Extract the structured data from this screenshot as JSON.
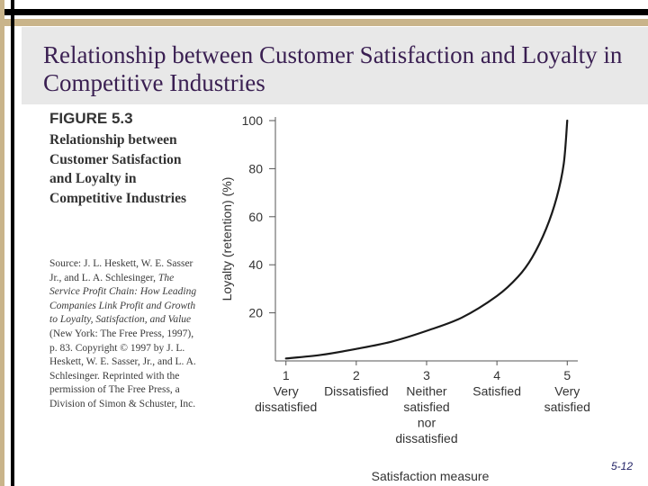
{
  "slide": {
    "title": "Relationship between Customer Satisfaction and Loyalty in Competitive Industries",
    "number": "5-12"
  },
  "figure": {
    "label": "FIGURE 5.3",
    "caption": "Relationship between Customer Satisfaction and Loyalty in Competitive Industries",
    "source_parts": [
      {
        "text": "Source: J. L. Heskett, W. E. Sasser Jr., and L. A. Schlesinger, ",
        "italic": false
      },
      {
        "text": "The Service Profit Chain: How Leading Companies Link Profit and Growth to Loyalty, Satisfaction, and Value",
        "italic": true
      },
      {
        "text": " (New York: The Free Press, 1997), p. 83. Copyright © 1997 by J. L. Heskett, W. E. Sasser, Jr., and L. A. Schlesinger. Reprinted with the permission of The Free Press, a Division of Simon & Schuster, Inc.",
        "italic": false
      }
    ]
  },
  "colors": {
    "title": "#3a1f52",
    "curve": "#1a1a1a",
    "axis": "#555555",
    "text": "#333333"
  },
  "chart_data": {
    "type": "line",
    "title": "",
    "xlabel": "Satisfaction measure",
    "ylabel": "Loyalty (retention) (%)",
    "xlim": [
      0.85,
      5.15
    ],
    "ylim": [
      0,
      100
    ],
    "x_ticks": [
      {
        "value": 1,
        "lines": [
          "1",
          "Very",
          "dissatisfied"
        ]
      },
      {
        "value": 2,
        "lines": [
          "2",
          "Dissatisfied"
        ]
      },
      {
        "value": 3,
        "lines": [
          "3",
          "Neither",
          "satisfied",
          "nor",
          "dissatisfied"
        ]
      },
      {
        "value": 4,
        "lines": [
          "4",
          "Satisfied"
        ]
      },
      {
        "value": 5,
        "lines": [
          "5",
          "Very",
          "satisfied"
        ]
      }
    ],
    "y_ticks": [
      20,
      40,
      60,
      80,
      100
    ],
    "series": [
      {
        "name": "Loyalty",
        "x": [
          1.0,
          1.5,
          2.0,
          2.5,
          3.0,
          3.5,
          4.0,
          4.3,
          4.5,
          4.7,
          4.85,
          4.95,
          5.0
        ],
        "y": [
          1,
          2.5,
          5,
          8,
          12.5,
          18,
          27,
          35,
          43,
          55,
          68,
          82,
          100
        ]
      }
    ]
  }
}
